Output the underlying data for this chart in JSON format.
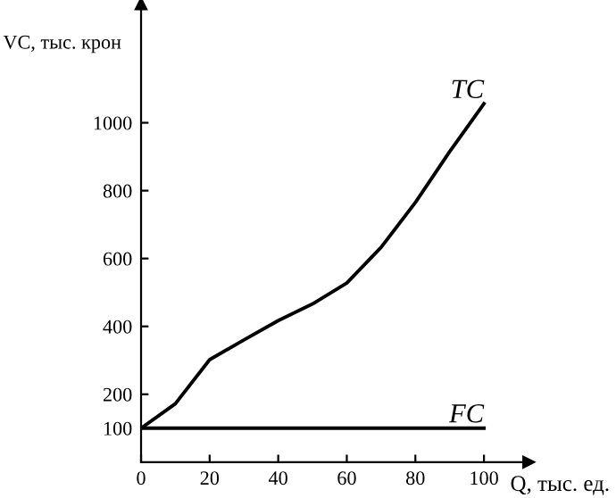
{
  "chart_data": {
    "type": "line",
    "xlabel": "Q, тыс. ед.",
    "ylabel": "VC, тыс. крон",
    "xlim": [
      0,
      113
    ],
    "ylim": [
      0,
      1350
    ],
    "xticks": [
      0,
      20,
      40,
      60,
      80,
      100
    ],
    "yticks": [
      100,
      200,
      400,
      600,
      800,
      1000
    ],
    "grid": false,
    "legend": false,
    "marker": "none",
    "line_style": "solid",
    "series": [
      {
        "name": "TC",
        "color": "#000000",
        "x": [
          0,
          10,
          20,
          30,
          40,
          50,
          60,
          70,
          80,
          90,
          100
        ],
        "values": [
          100,
          172,
          302,
          360,
          417,
          466,
          528,
          633,
          765,
          915,
          1056
        ]
      },
      {
        "name": "FC",
        "color": "#000000",
        "x": [
          0,
          100
        ],
        "values": [
          100,
          100
        ]
      }
    ]
  }
}
